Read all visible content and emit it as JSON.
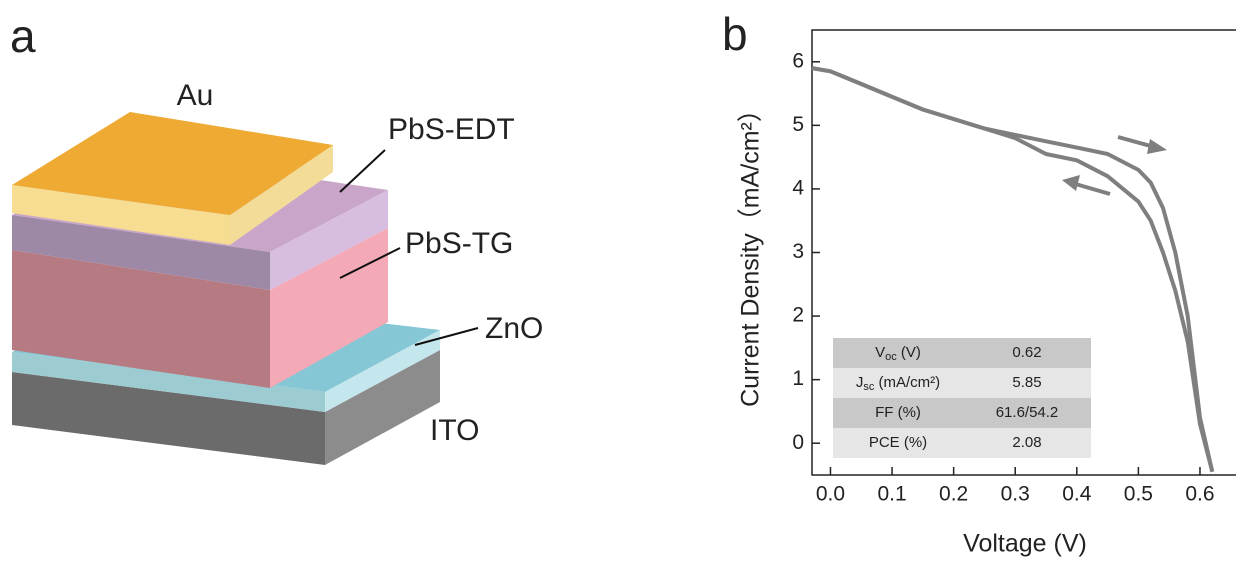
{
  "panel_labels": [
    "a",
    "b"
  ],
  "diagram": {
    "layers": [
      "Au",
      "PbS-EDT",
      "PbS-TG",
      "ZnO",
      "ITO"
    ]
  },
  "chart_data": {
    "type": "line",
    "x_label": "Voltage (V)",
    "y_label": "Current Density（mA/cm²）",
    "xlim": [
      -0.03,
      0.665
    ],
    "ylim": [
      -0.5,
      6.5
    ],
    "xticks": [
      {
        "value": 0,
        "label": "0.0"
      },
      0.1,
      0.2,
      0.3,
      0.4,
      0.5,
      0.6
    ],
    "yticks": [
      0,
      1,
      2,
      3,
      4,
      5,
      6
    ],
    "x": [
      -0.03,
      0,
      0.05,
      0.1,
      0.15,
      0.2,
      0.25,
      0.3,
      0.35,
      0.4,
      0.45,
      0.5,
      0.52,
      0.54,
      0.56,
      0.58,
      0.6,
      0.62
    ],
    "series": [
      {
        "color": "#7f7f7f",
        "values": [
          5.9,
          5.85,
          5.65,
          5.45,
          5.25,
          5.1,
          4.95,
          4.85,
          4.75,
          4.65,
          4.55,
          4.3,
          4.1,
          3.7,
          3.0,
          2.0,
          0.4,
          -0.45
        ]
      },
      {
        "color": "#7f7f7f",
        "values": [
          5.9,
          5.85,
          5.65,
          5.45,
          5.25,
          5.1,
          4.95,
          4.8,
          4.55,
          4.45,
          4.2,
          3.8,
          3.5,
          3.0,
          2.4,
          1.6,
          0.3,
          -0.45
        ]
      }
    ],
    "table": {
      "rows": [
        [
          {
            "text": "V",
            "sub": "oc",
            "tail": " (V)"
          },
          "0.62"
        ],
        [
          {
            "text": "J",
            "sub": "sc",
            "tail": " (mA/cm²)"
          },
          "5.85"
        ],
        [
          {
            "text": "FF (%)"
          },
          "61.6/54.2"
        ],
        [
          {
            "text": "PCE (%)"
          },
          "2.08"
        ]
      ]
    }
  }
}
